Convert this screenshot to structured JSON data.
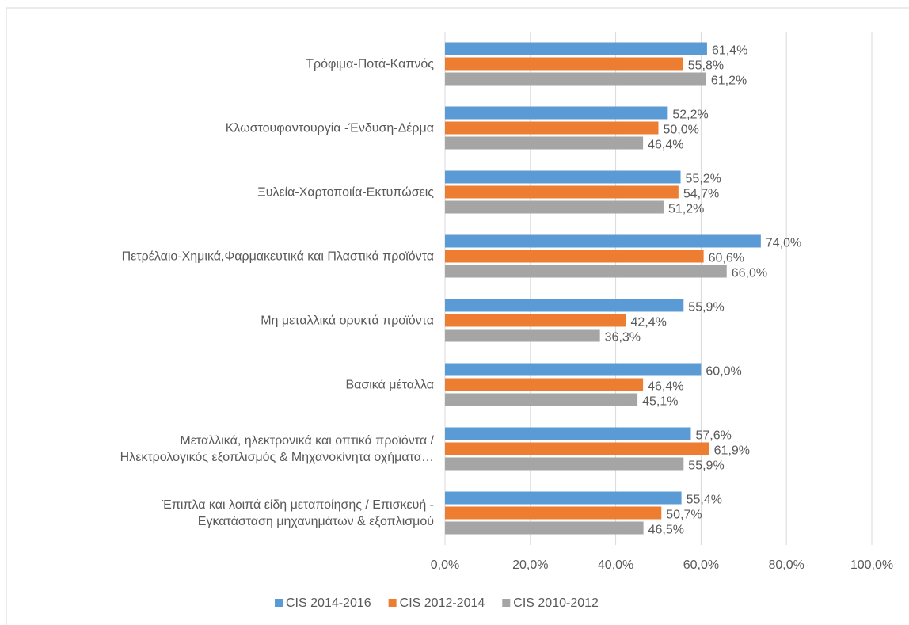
{
  "chart_data": {
    "type": "bar",
    "orientation": "horizontal",
    "categories": [
      "Τρόφιμα-Ποτά-Καπνός",
      "Κλωστουφαντουργία -Ένδυση-Δέρμα",
      "Ξυλεία-Χαρτοποιία-Εκτυπώσεις",
      "Πετρέλαιο-Χημικά,Φαρμακευτικά και Πλαστικά προϊόντα",
      "Μη μεταλλικά  ορυκτά προϊόντα",
      "Βασικά μέταλλα",
      "Μεταλλικά, ηλεκτρονικά και οπτικά προϊόντα /\nΗλεκτρολογικός εξοπλισμός & Μηχανοκίνητα οχήματα…",
      "Έπιπλα και λοιπά είδη μεταποίησης  / Επισκευή -\nΕγκατάσταση μηχανημάτων & εξοπλισμού"
    ],
    "series": [
      {
        "name": "CIS 2014-2016",
        "color": "#5b9bd5",
        "values": [
          61.4,
          52.2,
          55.2,
          74.0,
          55.9,
          60.0,
          57.6,
          55.4
        ],
        "value_labels": [
          "61,4%",
          "52,2%",
          "55,2%",
          "74,0%",
          "55,9%",
          "60,0%",
          "57,6%",
          "55,4%"
        ]
      },
      {
        "name": "CIS 2012-2014",
        "color": "#ed7d31",
        "values": [
          55.8,
          50.0,
          54.7,
          60.6,
          42.4,
          46.4,
          61.9,
          50.7
        ],
        "value_labels": [
          "55,8%",
          "50,0%",
          "54,7%",
          "60,6%",
          "42,4%",
          "46,4%",
          "61,9%",
          "50,7%"
        ]
      },
      {
        "name": "CIS 2010-2012",
        "color": "#a5a5a5",
        "values": [
          61.2,
          46.4,
          51.2,
          66.0,
          36.3,
          45.1,
          55.9,
          46.5
        ],
        "value_labels": [
          "61,2%",
          "46,4%",
          "51,2%",
          "66,0%",
          "36,3%",
          "45,1%",
          "55,9%",
          "46,5%"
        ]
      }
    ],
    "xlim": [
      0,
      100
    ],
    "xticks": [
      {
        "value": 0,
        "label": "0,0%"
      },
      {
        "value": 20,
        "label": "20,0%"
      },
      {
        "value": 40,
        "label": "40,0%"
      },
      {
        "value": 60,
        "label": "60,0%"
      },
      {
        "value": 80,
        "label": "80,0%"
      },
      {
        "value": 100,
        "label": "100,0%"
      }
    ],
    "grid": true,
    "legend": "bottom"
  }
}
